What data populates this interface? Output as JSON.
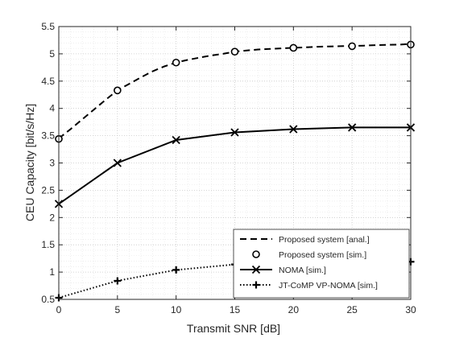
{
  "chart_data": {
    "type": "line",
    "title": "",
    "xlabel": "Transmit SNR [dB]",
    "ylabel": "CEU Capacity [bit/s/Hz]",
    "xlim": [
      0,
      30
    ],
    "ylim": [
      0.5,
      5.5
    ],
    "x_ticks": [
      "0",
      "5",
      "10",
      "15",
      "20",
      "25",
      "30"
    ],
    "y_ticks": [
      "0.5",
      "1",
      "1.5",
      "2",
      "2.5",
      "3",
      "3.5",
      "4",
      "4.5",
      "5",
      "5.5"
    ],
    "grid": "major and minor dotted",
    "legend_position": "bottom-right",
    "series": [
      {
        "name": "Proposed system [anal.]",
        "style": "dashed",
        "marker": "none",
        "x": [
          0,
          1,
          2,
          3,
          4,
          5,
          6,
          7,
          8,
          9,
          10,
          11,
          12,
          13,
          14,
          15,
          16,
          17,
          18,
          19,
          20,
          21,
          22,
          23,
          24,
          25,
          26,
          27,
          28,
          29,
          30
        ],
        "values": [
          3.45,
          3.62,
          3.8,
          3.98,
          4.16,
          4.33,
          4.45,
          4.57,
          4.68,
          4.77,
          4.84,
          4.89,
          4.93,
          4.97,
          5.0,
          5.04,
          5.06,
          5.08,
          5.09,
          5.1,
          5.11,
          5.12,
          5.13,
          5.135,
          5.14,
          5.145,
          5.15,
          5.16,
          5.165,
          5.17,
          5.18
        ]
      },
      {
        "name": "Proposed system [sim.]",
        "style": "none",
        "marker": "circle",
        "x": [
          0,
          5,
          10,
          15,
          20,
          25,
          30
        ],
        "values": [
          3.44,
          4.33,
          4.84,
          5.04,
          5.11,
          5.14,
          5.17
        ]
      },
      {
        "name": "NOMA [sim.]",
        "style": "solid",
        "marker": "x",
        "x": [
          0,
          5,
          10,
          15,
          20,
          25,
          30
        ],
        "values": [
          2.25,
          3.0,
          3.42,
          3.56,
          3.62,
          3.65,
          3.65
        ]
      },
      {
        "name": "JT-CoMP VP-NOMA [sim.]",
        "style": "dotted",
        "marker": "plus",
        "x": [
          0,
          5,
          10,
          15,
          20,
          25,
          30
        ],
        "values": [
          0.53,
          0.84,
          1.04,
          1.14,
          1.18,
          1.19,
          1.19
        ]
      }
    ]
  }
}
